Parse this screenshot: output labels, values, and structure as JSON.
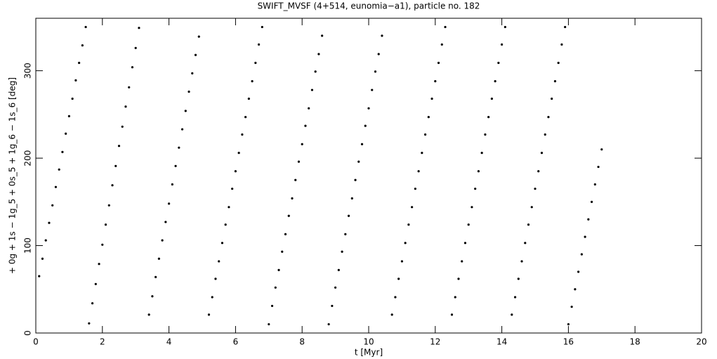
{
  "chart_data": {
    "type": "scatter",
    "title": "SWIFT_MVSF (4+514, eunomia−a1), particle no. 182",
    "x_label": "t [Myr]",
    "y_label": "+ 0g + 1s − 1g_5 + 0s_5 + 1g_6 − 1s_6 [deg]",
    "xlim": [
      0,
      20
    ],
    "ylim": [
      0,
      360
    ],
    "xticks": [
      0,
      2,
      4,
      6,
      8,
      10,
      12,
      14,
      16,
      18,
      20
    ],
    "yticks": [
      0,
      100,
      200,
      300
    ],
    "color": "#000000",
    "x": [
      0.1,
      0.2,
      0.3,
      0.4,
      0.5,
      0.6,
      0.7,
      0.8,
      0.9,
      1.0,
      1.1,
      1.2,
      1.3,
      1.4,
      1.5,
      1.6,
      1.7,
      1.8,
      1.9,
      2.0,
      2.1,
      2.2,
      2.3,
      2.4,
      2.5,
      2.6,
      2.7,
      2.8,
      2.9,
      3.0,
      3.1,
      3.4,
      3.5,
      3.6,
      3.7,
      3.8,
      3.9,
      4.0,
      4.1,
      4.2,
      4.3,
      4.4,
      4.5,
      4.6,
      4.7,
      4.8,
      4.9,
      5.2,
      5.3,
      5.4,
      5.5,
      5.6,
      5.7,
      5.8,
      5.9,
      6.0,
      6.1,
      6.2,
      6.3,
      6.4,
      6.5,
      6.6,
      6.7,
      6.8,
      7.0,
      7.1,
      7.2,
      7.3,
      7.4,
      7.5,
      7.6,
      7.7,
      7.8,
      7.9,
      8.0,
      8.1,
      8.2,
      8.3,
      8.4,
      8.5,
      8.6,
      8.8,
      8.9,
      9.0,
      9.1,
      9.2,
      9.3,
      9.4,
      9.5,
      9.6,
      9.7,
      9.8,
      9.9,
      10.0,
      10.1,
      10.2,
      10.3,
      10.4,
      10.7,
      10.8,
      10.9,
      11.0,
      11.1,
      11.2,
      11.3,
      11.4,
      11.5,
      11.6,
      11.7,
      11.8,
      11.9,
      12.0,
      12.1,
      12.2,
      12.3,
      12.5,
      12.6,
      12.7,
      12.8,
      12.9,
      13.0,
      13.1,
      13.2,
      13.3,
      13.4,
      13.5,
      13.6,
      13.7,
      13.8,
      13.9,
      14.0,
      14.1,
      14.3,
      14.4,
      14.5,
      14.6,
      14.7,
      14.8,
      14.9,
      15.0,
      15.1,
      15.2,
      15.3,
      15.4,
      15.5,
      15.6,
      15.7,
      15.8,
      15.9,
      16.0,
      16.1,
      16.2,
      16.3,
      16.4,
      16.5,
      16.6,
      16.7,
      16.8,
      16.9,
      17.0
    ],
    "y": [
      65,
      85,
      106,
      126,
      146,
      167,
      187,
      207,
      228,
      248,
      268,
      289,
      309,
      329,
      350,
      11,
      34,
      56,
      79,
      101,
      124,
      146,
      169,
      191,
      214,
      236,
      259,
      281,
      304,
      326,
      349,
      21,
      42,
      64,
      85,
      106,
      127,
      148,
      170,
      191,
      212,
      233,
      254,
      276,
      297,
      318,
      339,
      21,
      41,
      62,
      82,
      103,
      124,
      144,
      165,
      185,
      206,
      227,
      247,
      268,
      288,
      309,
      330,
      350,
      10,
      31,
      52,
      72,
      93,
      113,
      134,
      154,
      175,
      196,
      216,
      237,
      257,
      278,
      299,
      319,
      340,
      10,
      31,
      52,
      72,
      93,
      113,
      134,
      154,
      175,
      196,
      216,
      237,
      257,
      278,
      299,
      319,
      340,
      21,
      41,
      62,
      82,
      103,
      124,
      144,
      165,
      185,
      206,
      227,
      247,
      268,
      288,
      309,
      330,
      350,
      21,
      41,
      62,
      82,
      103,
      124,
      144,
      165,
      185,
      206,
      227,
      247,
      268,
      288,
      309,
      330,
      350,
      21,
      41,
      62,
      82,
      103,
      124,
      144,
      165,
      185,
      206,
      227,
      247,
      268,
      288,
      309,
      330,
      350,
      10,
      30,
      50,
      70,
      90,
      110,
      130,
      150,
      170,
      190,
      210
    ]
  }
}
